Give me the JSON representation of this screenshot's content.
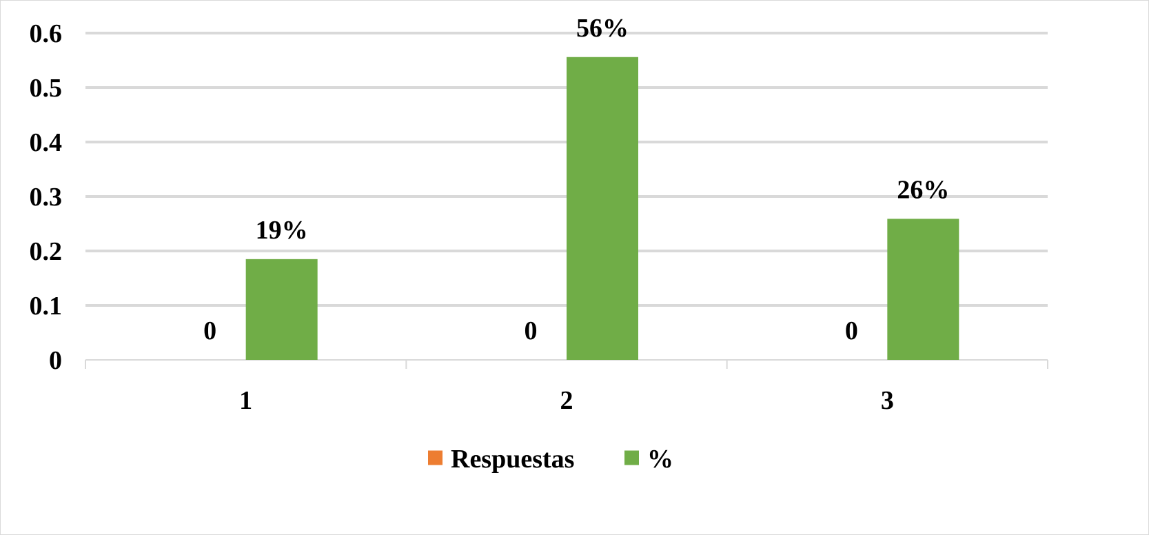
{
  "chart_data": {
    "type": "bar",
    "categories": [
      "1",
      "2",
      "3"
    ],
    "series": [
      {
        "name": "Respuestas",
        "values": [
          0,
          0,
          0
        ],
        "labels": [
          "0",
          "0",
          "0"
        ],
        "color": "#ed7d31"
      },
      {
        "name": "%",
        "values": [
          0.185,
          0.556,
          0.259
        ],
        "labels": [
          "19%",
          "56%",
          "26%"
        ],
        "color": "#70ad47"
      }
    ],
    "yticks": [
      "0",
      "0.1",
      "0.2",
      "0.3",
      "0.4",
      "0.5",
      "0.6"
    ],
    "ylim": [
      0,
      0.6
    ],
    "grid": true,
    "legend_position": "bottom",
    "title": "",
    "xlabel": "",
    "ylabel": ""
  }
}
